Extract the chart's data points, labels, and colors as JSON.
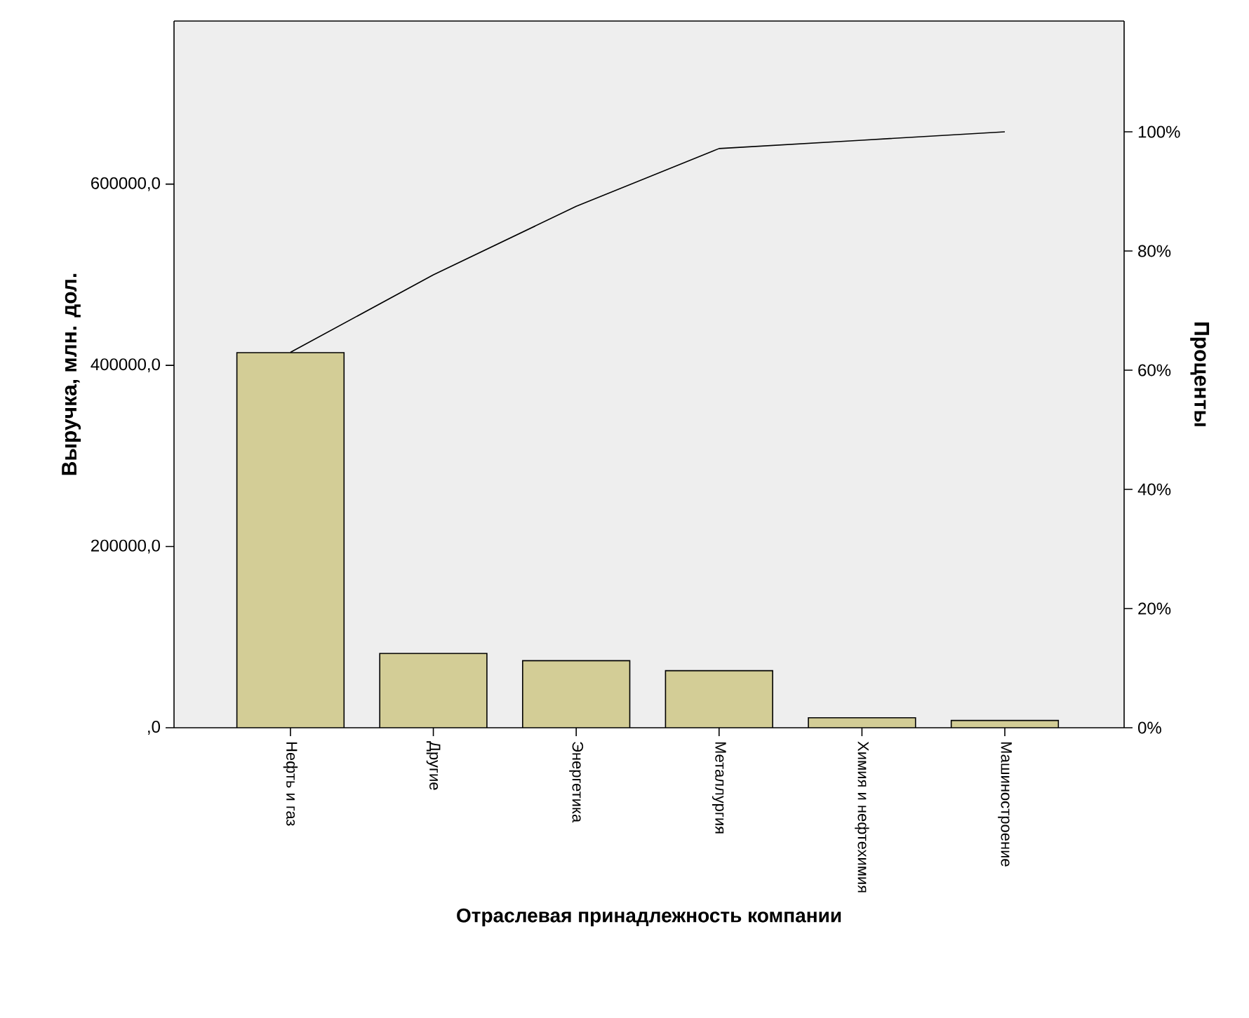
{
  "chart_data": {
    "type": "bar",
    "xlabel": "Отраслевая принадлежность компании",
    "ylabel": "Выручка, млн. дол.",
    "y2label": "Проценты",
    "categories": [
      "Нефть и газ",
      "Другие",
      "Энергетика",
      "Металлургия",
      "Химия и нефтехимия",
      "Машиностроение"
    ],
    "series": [
      {
        "color": "#d3cd96",
        "values": [
          414000,
          82000,
          74000,
          63000,
          11000,
          8000
        ]
      },
      {
        "type": "line",
        "axis": "y2",
        "color": "#000000",
        "values": [
          63,
          76,
          87.5,
          97.2,
          98.6,
          100
        ]
      }
    ],
    "ylim": [
      0,
      780000
    ],
    "yticks": [
      {
        "value": 0,
        "label": ",0"
      },
      {
        "value": 200000,
        "label": "200000,0"
      },
      {
        "value": 400000,
        "label": "400000,0"
      },
      {
        "value": 600000,
        "label": "600000,0"
      }
    ],
    "y2lim": [
      0,
      118.6
    ],
    "y2ticks": [
      {
        "value": 0,
        "label": "0%"
      },
      {
        "value": 20,
        "label": "20%"
      },
      {
        "value": 40,
        "label": "40%"
      },
      {
        "value": 60,
        "label": "60%"
      },
      {
        "value": 80,
        "label": "80%"
      },
      {
        "value": 100,
        "label": "100%"
      }
    ]
  }
}
